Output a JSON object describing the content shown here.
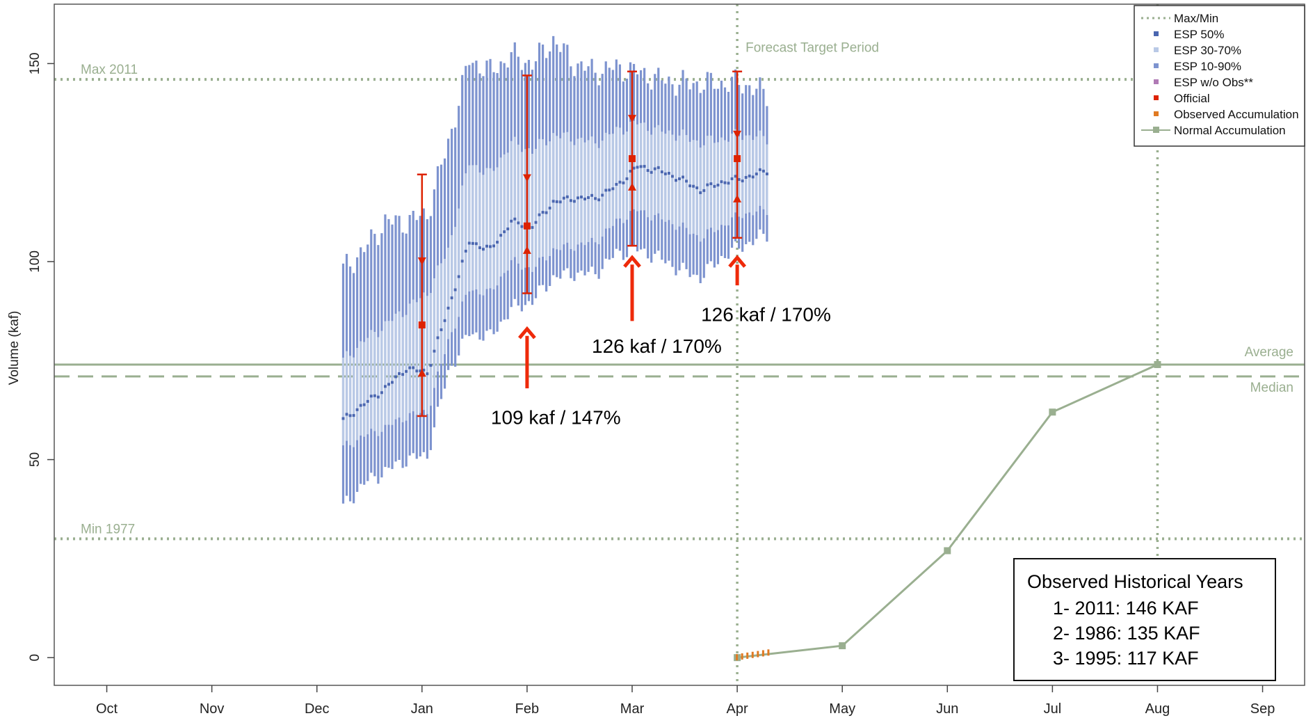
{
  "chart_data": {
    "type": "line",
    "title": "",
    "xlabel": "",
    "ylabel": "Volume (kaf)",
    "ylim": [
      -7,
      165
    ],
    "xlim": [
      -0.5,
      11.4
    ],
    "x_ticks": [
      {
        "label": "Oct",
        "x": 0
      },
      {
        "label": "Nov",
        "x": 1
      },
      {
        "label": "Dec",
        "x": 2
      },
      {
        "label": "Jan",
        "x": 3
      },
      {
        "label": "Feb",
        "x": 4
      },
      {
        "label": "Mar",
        "x": 5
      },
      {
        "label": "Apr",
        "x": 6
      },
      {
        "label": "May",
        "x": 7
      },
      {
        "label": "Jun",
        "x": 8
      },
      {
        "label": "Jul",
        "x": 9
      },
      {
        "label": "Aug",
        "x": 10
      },
      {
        "label": "Sep",
        "x": 11
      }
    ],
    "y_ticks": [
      0,
      50,
      100,
      150
    ],
    "legend_position": "top-right",
    "legend": [
      {
        "label": "Max/Min",
        "symbol": "dotted-line",
        "color": "#9aaf90"
      },
      {
        "label": "ESP 50%",
        "symbol": "square",
        "color": "#4a66b0"
      },
      {
        "label": "ESP 30-70%",
        "symbol": "square",
        "color": "#b9c9e6"
      },
      {
        "label": "ESP 10-90%",
        "symbol": "square",
        "color": "#7d93cf"
      },
      {
        "label": "ESP w/o Obs**",
        "symbol": "square",
        "color": "#b07ab5"
      },
      {
        "label": "Official",
        "symbol": "square",
        "color": "#dd2200"
      },
      {
        "label": "Observed Accumulation",
        "symbol": "square",
        "color": "#e07a22"
      },
      {
        "label": "Normal Accumulation",
        "symbol": "line-square",
        "color": "#9aaf90"
      }
    ],
    "reference_lines": [
      {
        "label": "Max 2011",
        "y": 146,
        "style": "dotted"
      },
      {
        "label": "Min 1977",
        "y": 30,
        "style": "dotted"
      },
      {
        "label": "Average",
        "y": 74,
        "style": "solid"
      },
      {
        "label": "Median",
        "y": 71,
        "style": "dashed"
      }
    ],
    "target_period": {
      "label": "Forecast Target Period",
      "x_start": 6,
      "x_end": 10
    },
    "esp_bands": [
      {
        "x": 2.25,
        "p10": 38,
        "p30": 53,
        "p50": 60,
        "p70": 75,
        "p90": 98
      },
      {
        "x": 2.45,
        "p10": 44,
        "p30": 56,
        "p50": 64,
        "p70": 80,
        "p90": 103
      },
      {
        "x": 2.65,
        "p10": 47,
        "p30": 58,
        "p50": 68,
        "p70": 84,
        "p90": 110
      },
      {
        "x": 2.85,
        "p10": 50,
        "p30": 61,
        "p50": 73,
        "p70": 88,
        "p90": 110
      },
      {
        "x": 3.05,
        "p10": 51,
        "p30": 62,
        "p50": 72,
        "p70": 92,
        "p90": 112
      },
      {
        "x": 3.25,
        "p10": 72,
        "p30": 80,
        "p50": 88,
        "p70": 103,
        "p90": 130
      },
      {
        "x": 3.45,
        "p10": 82,
        "p30": 93,
        "p50": 105,
        "p70": 125,
        "p90": 151
      },
      {
        "x": 3.65,
        "p10": 81,
        "p30": 92,
        "p50": 103,
        "p70": 122,
        "p90": 148
      },
      {
        "x": 3.85,
        "p10": 88,
        "p30": 100,
        "p50": 110,
        "p70": 130,
        "p90": 152
      },
      {
        "x": 4.05,
        "p10": 90,
        "p30": 98,
        "p50": 109,
        "p70": 128,
        "p90": 150
      },
      {
        "x": 4.25,
        "p10": 96,
        "p30": 103,
        "p50": 115,
        "p70": 132,
        "p90": 156
      },
      {
        "x": 4.45,
        "p10": 97,
        "p30": 104,
        "p50": 116,
        "p70": 131,
        "p90": 150
      },
      {
        "x": 4.65,
        "p10": 97,
        "p30": 105,
        "p50": 116,
        "p70": 130,
        "p90": 148
      },
      {
        "x": 4.85,
        "p10": 102,
        "p30": 110,
        "p50": 119,
        "p70": 133,
        "p90": 149
      },
      {
        "x": 5.05,
        "p10": 103,
        "p30": 113,
        "p50": 124,
        "p70": 135,
        "p90": 148
      },
      {
        "x": 5.25,
        "p10": 101,
        "p30": 111,
        "p50": 123,
        "p70": 133,
        "p90": 146
      },
      {
        "x": 5.45,
        "p10": 98,
        "p30": 109,
        "p50": 121,
        "p70": 132,
        "p90": 145
      },
      {
        "x": 5.65,
        "p10": 96,
        "p30": 106,
        "p50": 118,
        "p70": 130,
        "p90": 145
      },
      {
        "x": 5.85,
        "p10": 101,
        "p30": 109,
        "p50": 120,
        "p70": 131,
        "p90": 145
      },
      {
        "x": 6.05,
        "p10": 104,
        "p30": 112,
        "p50": 121,
        "p70": 132,
        "p90": 145
      },
      {
        "x": 6.3,
        "p10": 107,
        "p30": 113,
        "p50": 123,
        "p70": 131,
        "p90": 142
      }
    ],
    "official_forecasts": [
      {
        "x": 3.0,
        "value": 84,
        "p10": 61,
        "p30": 72,
        "p70": 100,
        "p90": 122
      },
      {
        "x": 4.0,
        "value": 109,
        "p10": 92,
        "p30": 103,
        "p70": 121,
        "p90": 147
      },
      {
        "x": 5.0,
        "value": 126,
        "p10": 104,
        "p30": 119,
        "p70": 136,
        "p90": 148
      },
      {
        "x": 6.0,
        "value": 126,
        "p10": 106,
        "p30": 116,
        "p70": 132,
        "p90": 148
      }
    ],
    "normal_accumulation": {
      "x": [
        6,
        7,
        8,
        9,
        10
      ],
      "y": [
        0,
        3,
        27,
        62,
        74
      ]
    },
    "observed_accumulation": {
      "x": [
        6.0,
        6.05,
        6.1,
        6.15,
        6.2,
        6.25,
        6.3
      ],
      "y": [
        0,
        0.2,
        0.4,
        0.6,
        0.8,
        1.0,
        1.2
      ]
    },
    "annotations": [
      {
        "text": "109 kaf / 147%",
        "arrow_x": 4.0,
        "arrow_y_from": 68,
        "arrow_y_to": 83
      },
      {
        "text": "126 kaf / 170%",
        "arrow_x": 5.0,
        "arrow_y_from": 85,
        "arrow_y_to": 101
      },
      {
        "text": "126 kaf / 170%",
        "arrow_x": 6.0,
        "arrow_y_from": 94,
        "arrow_y_to": 101
      }
    ],
    "info_box": {
      "title": "Observed Historical Years",
      "lines": [
        "1- 2011: 146 KAF",
        "2- 1986: 135 KAF",
        "3- 1995: 117 KAF"
      ]
    },
    "colors": {
      "esp_outer": "#7d93cf",
      "esp_inner": "#b9c9e6",
      "esp_median": "#4a66b0",
      "official": "#dd2200",
      "arrow": "#ee2a0a",
      "reference": "#9aaf90",
      "observed": "#e07a22"
    }
  }
}
